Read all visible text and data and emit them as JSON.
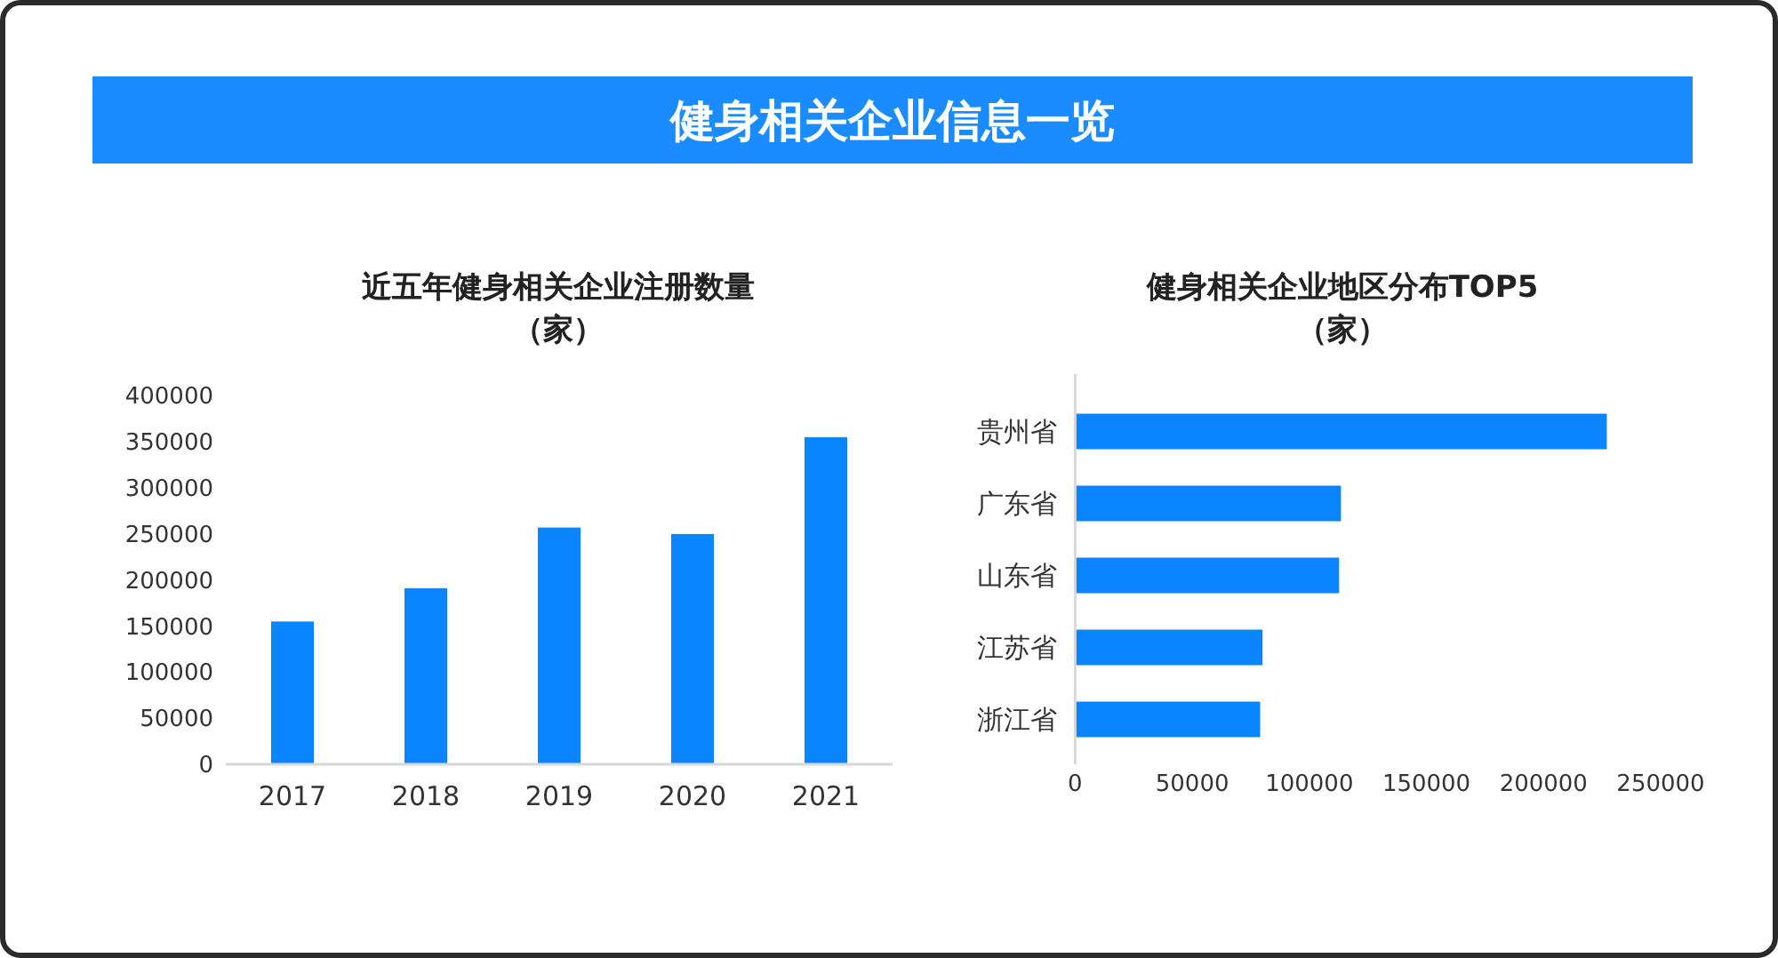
{
  "chart_data": [
    {
      "type": "other",
      "title": "健身相关企业信息一览"
    },
    {
      "type": "bar",
      "title": "近五年健身相关企业注册数量",
      "subtitle": "（家）",
      "categories": [
        "2017",
        "2018",
        "2019",
        "2020",
        "2021"
      ],
      "values": [
        155000,
        191000,
        257000,
        250000,
        355000
      ],
      "color": "#0a84ff",
      "ylim": [
        0,
        400000
      ],
      "yticks": [
        0,
        50000,
        100000,
        150000,
        200000,
        250000,
        300000,
        350000,
        400000
      ],
      "grid": false
    },
    {
      "type": "bar",
      "orientation": "horizontal",
      "title": "健身相关企业地区分布TOP5",
      "subtitle": "（家）",
      "categories": [
        "贵州省",
        "广东省",
        "山东省",
        "江苏省",
        "浙江省"
      ],
      "values": [
        227000,
        113500,
        112700,
        80000,
        79000
      ],
      "color": "#0a84ff",
      "xlim": [
        0,
        250000
      ],
      "xticks": [
        0,
        50000,
        100000,
        150000,
        200000,
        250000
      ],
      "grid": false
    }
  ]
}
